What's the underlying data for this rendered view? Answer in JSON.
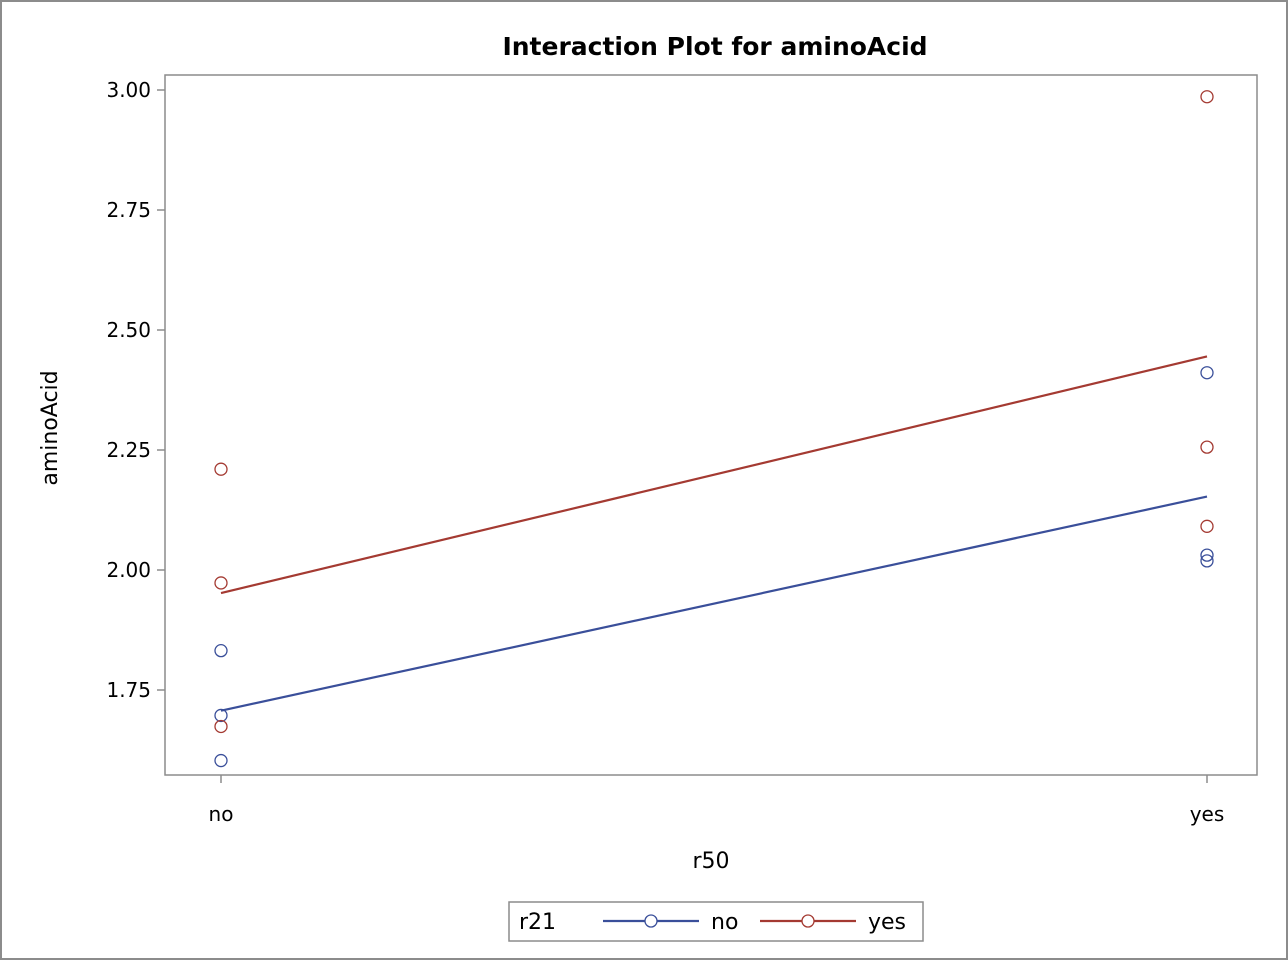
{
  "chart_data": {
    "type": "line",
    "title": "Interaction Plot for aminoAcid",
    "xlabel": "r50",
    "ylabel": "aminoAcid",
    "categories": [
      "no",
      "yes"
    ],
    "y_ticks": [
      "1.75",
      "2.00",
      "2.25",
      "2.50",
      "2.75",
      "3.00"
    ],
    "ylim": [
      1.565,
      3.03
    ],
    "grid": false,
    "legend": {
      "title": "r21",
      "placement": "bottom",
      "entries": [
        "no",
        "yes"
      ]
    },
    "series": [
      {
        "name": "no",
        "color": "#3a4f9a",
        "fit": [
          1.707,
          2.153
        ],
        "points": [
          {
            "x": "no",
            "y": 1.832
          },
          {
            "x": "no",
            "y": 1.697
          },
          {
            "x": "no",
            "y": 1.603
          },
          {
            "x": "yes",
            "y": 2.411
          },
          {
            "x": "yes",
            "y": 2.031
          },
          {
            "x": "yes",
            "y": 2.019
          }
        ]
      },
      {
        "name": "yes",
        "color": "#a43a32",
        "fit": [
          1.952,
          2.445
        ],
        "points": [
          {
            "x": "no",
            "y": 2.21
          },
          {
            "x": "no",
            "y": 1.973
          },
          {
            "x": "no",
            "y": 1.674
          },
          {
            "x": "yes",
            "y": 2.986
          },
          {
            "x": "yes",
            "y": 2.256
          },
          {
            "x": "yes",
            "y": 2.091
          }
        ]
      }
    ]
  }
}
